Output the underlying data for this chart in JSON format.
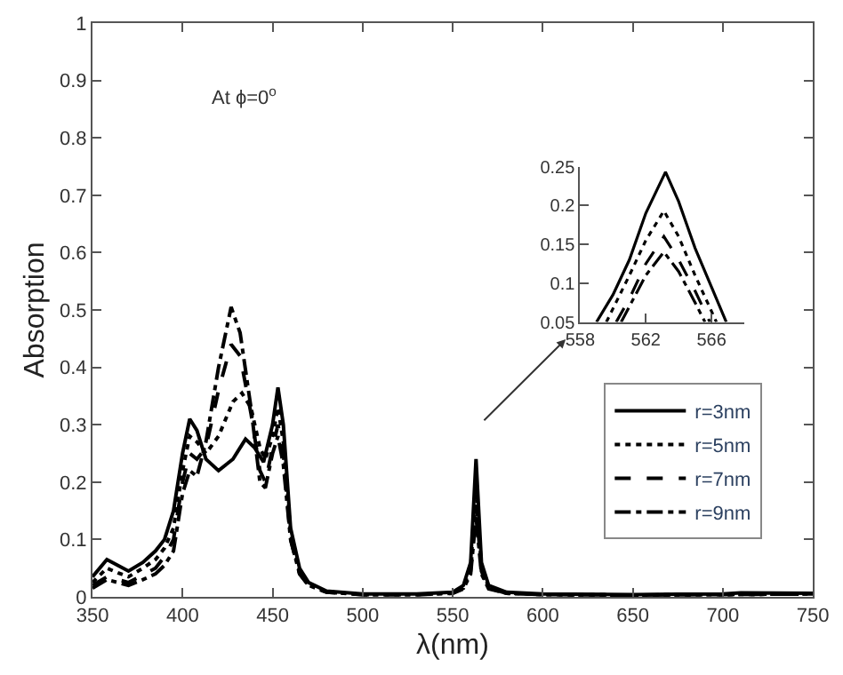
{
  "chart_data": [
    {
      "type": "line",
      "xlabel": "λ(nm)",
      "ylabel": "Absorption",
      "annotations": [
        "At ϕ=0$^{o}$"
      ],
      "xlim": [
        350,
        750
      ],
      "xticks": [
        350,
        400,
        450,
        500,
        550,
        600,
        650,
        700,
        750
      ],
      "ylim": [
        0,
        1
      ],
      "yticks": [
        0,
        0.1,
        0.2,
        0.3,
        0.4,
        0.5,
        0.6,
        0.7,
        0.8,
        0.9,
        1
      ],
      "legend": "bottom right",
      "marker": "none",
      "series": [
        {
          "name": "r=3nm",
          "color": "#000000",
          "line_style": "solid",
          "x": [
            350,
            358,
            364,
            370,
            378,
            385,
            390,
            395,
            400,
            404,
            408,
            413,
            420,
            428,
            435,
            440,
            445,
            450,
            453,
            456,
            460,
            465,
            470,
            480,
            500,
            530,
            550,
            556,
            560,
            563,
            566,
            570,
            580,
            600,
            650,
            700,
            710,
            750
          ],
          "values": [
            0.035,
            0.065,
            0.055,
            0.045,
            0.06,
            0.08,
            0.1,
            0.15,
            0.25,
            0.31,
            0.29,
            0.24,
            0.22,
            0.24,
            0.275,
            0.26,
            0.235,
            0.3,
            0.365,
            0.3,
            0.12,
            0.05,
            0.025,
            0.01,
            0.005,
            0.005,
            0.008,
            0.02,
            0.06,
            0.24,
            0.06,
            0.02,
            0.008,
            0.005,
            0.004,
            0.005,
            0.007,
            0.006
          ]
        },
        {
          "name": "r=5nm",
          "color": "#000000",
          "line_style": "dotted",
          "x": [
            350,
            358,
            364,
            370,
            378,
            385,
            390,
            395,
            400,
            404,
            408,
            413,
            420,
            428,
            433,
            438,
            443,
            446,
            450,
            453,
            456,
            460,
            465,
            470,
            480,
            500,
            530,
            550,
            556,
            560,
            563,
            566,
            570,
            580,
            600,
            650,
            700,
            750
          ],
          "values": [
            0.025,
            0.05,
            0.042,
            0.035,
            0.05,
            0.065,
            0.085,
            0.12,
            0.22,
            0.28,
            0.27,
            0.25,
            0.28,
            0.34,
            0.355,
            0.33,
            0.26,
            0.24,
            0.28,
            0.33,
            0.27,
            0.11,
            0.045,
            0.022,
            0.009,
            0.004,
            0.004,
            0.007,
            0.017,
            0.05,
            0.19,
            0.05,
            0.017,
            0.007,
            0.004,
            0.003,
            0.004,
            0.005
          ]
        },
        {
          "name": "r=7nm",
          "color": "#000000",
          "line_style": "dashed",
          "x": [
            350,
            358,
            364,
            370,
            378,
            385,
            390,
            395,
            400,
            404,
            408,
            413,
            420,
            427,
            432,
            438,
            443,
            446,
            450,
            453,
            456,
            460,
            465,
            470,
            480,
            500,
            530,
            550,
            556,
            560,
            563,
            566,
            570,
            580,
            600,
            650,
            700,
            750
          ],
          "values": [
            0.02,
            0.035,
            0.03,
            0.025,
            0.038,
            0.05,
            0.07,
            0.1,
            0.2,
            0.25,
            0.24,
            0.26,
            0.36,
            0.44,
            0.42,
            0.32,
            0.22,
            0.2,
            0.26,
            0.3,
            0.25,
            0.1,
            0.04,
            0.02,
            0.008,
            0.004,
            0.004,
            0.006,
            0.015,
            0.045,
            0.16,
            0.045,
            0.015,
            0.006,
            0.004,
            0.003,
            0.004,
            0.005
          ]
        },
        {
          "name": "r=9nm",
          "color": "#000000",
          "line_style": "dashdot",
          "x": [
            350,
            358,
            364,
            370,
            378,
            385,
            390,
            395,
            400,
            404,
            408,
            413,
            420,
            427,
            432,
            438,
            443,
            446,
            450,
            453,
            456,
            460,
            465,
            470,
            480,
            500,
            530,
            550,
            556,
            560,
            563,
            566,
            570,
            580,
            600,
            650,
            700,
            750
          ],
          "values": [
            0.015,
            0.03,
            0.025,
            0.02,
            0.03,
            0.04,
            0.055,
            0.08,
            0.18,
            0.22,
            0.21,
            0.27,
            0.4,
            0.505,
            0.46,
            0.33,
            0.2,
            0.19,
            0.25,
            0.28,
            0.23,
            0.1,
            0.04,
            0.02,
            0.008,
            0.004,
            0.004,
            0.006,
            0.014,
            0.04,
            0.14,
            0.04,
            0.014,
            0.006,
            0.004,
            0.003,
            0.004,
            0.005
          ]
        }
      ]
    },
    {
      "type": "line",
      "xlim": [
        558,
        568
      ],
      "xticks": [
        558,
        562,
        566
      ],
      "ylim": [
        0.05,
        0.25
      ],
      "yticks": [
        0.05,
        0.1,
        0.15,
        0.2,
        0.25
      ],
      "legend": false,
      "marker": "none",
      "series": [
        {
          "color": "#000000",
          "line_style": "solid",
          "x": [
            559,
            560,
            561,
            562,
            563.2,
            564,
            565,
            566,
            566.9
          ],
          "values": [
            0.05,
            0.085,
            0.13,
            0.19,
            0.243,
            0.205,
            0.145,
            0.095,
            0.05
          ]
        },
        {
          "color": "#000000",
          "line_style": "dotted",
          "x": [
            559.6,
            561,
            562,
            563.1,
            564,
            565,
            566.3
          ],
          "values": [
            0.05,
            0.11,
            0.155,
            0.193,
            0.16,
            0.11,
            0.05
          ]
        },
        {
          "color": "#000000",
          "line_style": "dashed",
          "x": [
            560.2,
            561,
            562,
            563.1,
            564,
            565,
            565.9
          ],
          "values": [
            0.05,
            0.08,
            0.125,
            0.16,
            0.13,
            0.09,
            0.05
          ]
        },
        {
          "color": "#000000",
          "line_style": "dashdot",
          "x": [
            560.5,
            561,
            562,
            563.1,
            564,
            565,
            565.6
          ],
          "values": [
            0.05,
            0.07,
            0.11,
            0.14,
            0.115,
            0.075,
            0.05
          ]
        }
      ]
    }
  ]
}
